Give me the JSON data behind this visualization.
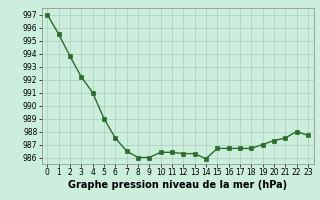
{
  "x": [
    0,
    1,
    2,
    3,
    4,
    5,
    6,
    7,
    8,
    9,
    10,
    11,
    12,
    13,
    14,
    15,
    16,
    17,
    18,
    19,
    20,
    21,
    22,
    23
  ],
  "y": [
    997.0,
    995.5,
    993.8,
    992.2,
    991.0,
    989.0,
    987.5,
    986.5,
    986.0,
    986.0,
    986.4,
    986.4,
    986.3,
    986.3,
    985.9,
    986.7,
    986.7,
    986.7,
    986.7,
    987.0,
    987.3,
    987.5,
    988.0,
    987.7
  ],
  "line_color": "#2d6a2d",
  "marker_color": "#2d6a2d",
  "bg_color": "#cceedd",
  "grid_color": "#aaccbb",
  "xlabel": "Graphe pression niveau de la mer (hPa)",
  "xlabel_fontsize": 7,
  "ylim": [
    985.5,
    997.5
  ],
  "xlim": [
    -0.5,
    23.5
  ],
  "yticks": [
    986,
    987,
    988,
    989,
    990,
    991,
    992,
    993,
    994,
    995,
    996,
    997
  ],
  "xticks": [
    0,
    1,
    2,
    3,
    4,
    5,
    6,
    7,
    8,
    9,
    10,
    11,
    12,
    13,
    14,
    15,
    16,
    17,
    18,
    19,
    20,
    21,
    22,
    23
  ],
  "tick_fontsize": 5.5,
  "marker_size": 2.5,
  "line_width": 1.0
}
